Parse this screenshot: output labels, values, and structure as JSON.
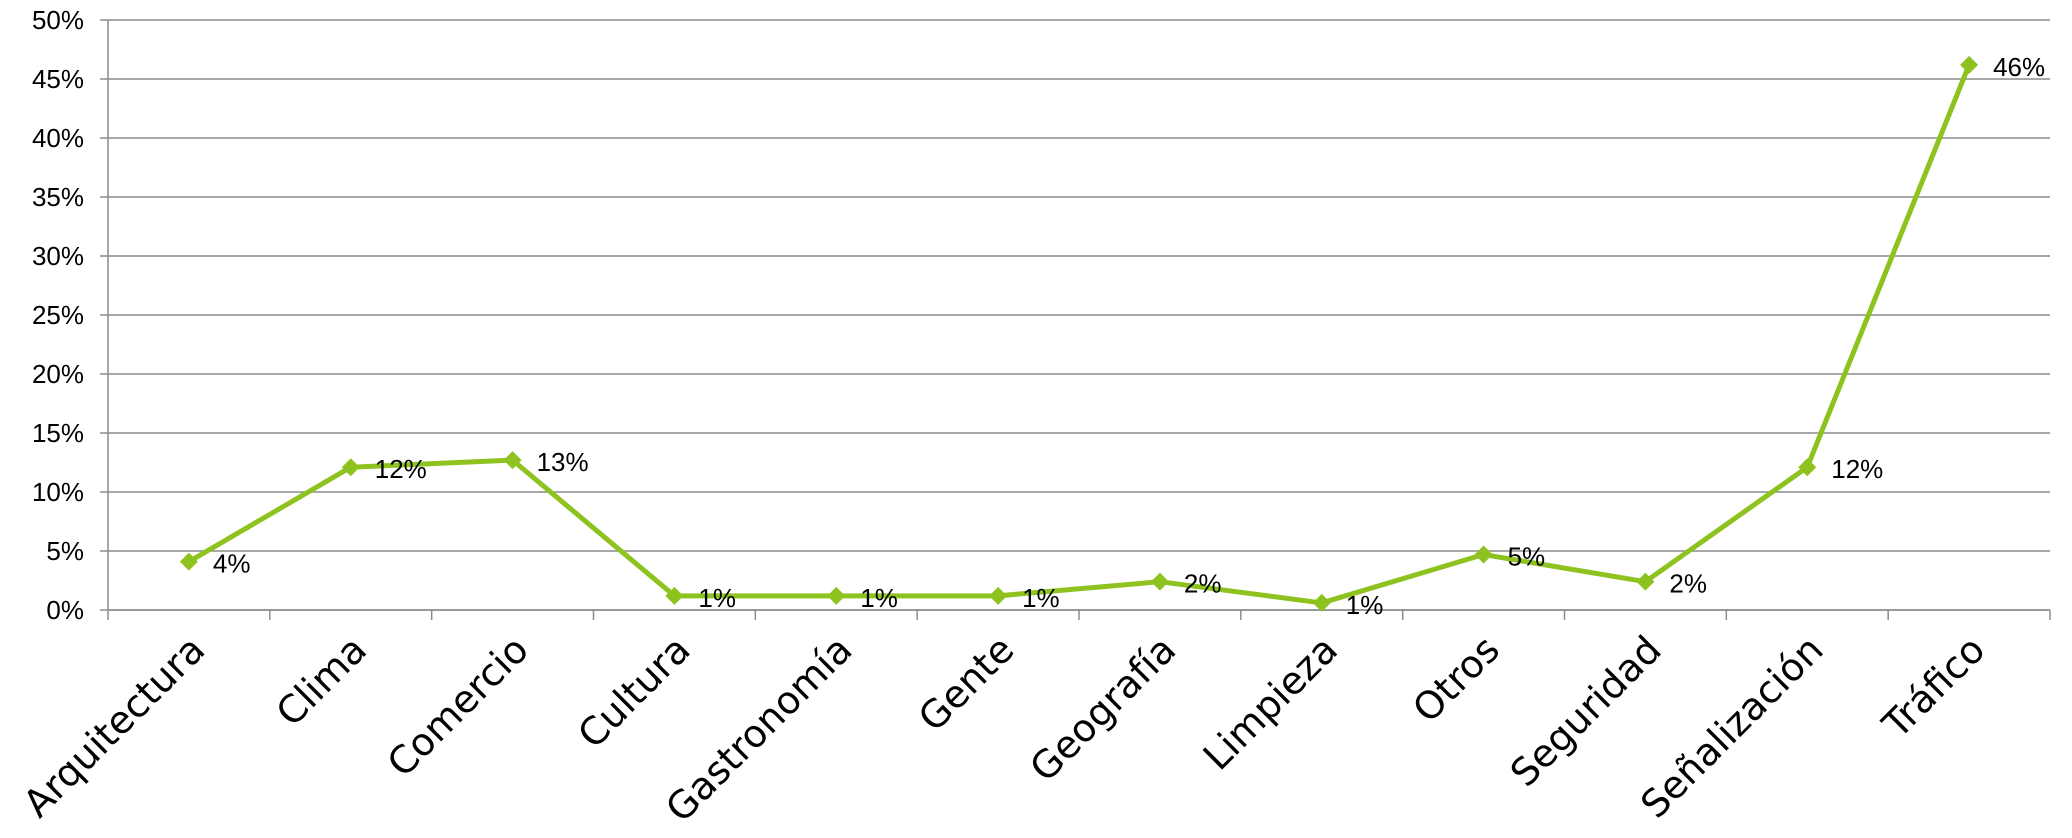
{
  "chart_data": {
    "type": "line",
    "title": "",
    "xlabel": "",
    "ylabel": "",
    "categories": [
      "Arquitectura",
      "Clima",
      "Comercio",
      "Cultura",
      "Gastronomía",
      "Gente",
      "Geografía",
      "Limpieza",
      "Otros",
      "Seguridad",
      "Señalización",
      "Tráfico"
    ],
    "series": [
      {
        "values": [
          4,
          12,
          13,
          1,
          1,
          1,
          2,
          1,
          5,
          2,
          12,
          46
        ],
        "plotted_values": [
          4.1,
          12.1,
          12.7,
          1.2,
          1.2,
          1.2,
          2.4,
          0.6,
          4.7,
          2.4,
          12.1,
          46.2
        ],
        "data_labels": [
          "4%",
          "12%",
          "13%",
          "1%",
          "1%",
          "1%",
          "2%",
          "1%",
          "5%",
          "2%",
          "12%",
          "46%"
        ]
      }
    ],
    "ylim": [
      0,
      50
    ],
    "y_ticks": [
      0,
      5,
      10,
      15,
      20,
      25,
      30,
      35,
      40,
      45,
      50
    ],
    "y_tick_labels": [
      "0%",
      "5%",
      "10%",
      "15%",
      "20%",
      "25%",
      "30%",
      "35%",
      "40%",
      "45%",
      "50%"
    ],
    "grid": true,
    "legend": "none",
    "colors": {
      "line": "#8dc21f",
      "marker": "#8dc21f",
      "grid": "#8c8c8c",
      "axis": "#8c8c8c"
    },
    "marker": "diamond-icon"
  }
}
